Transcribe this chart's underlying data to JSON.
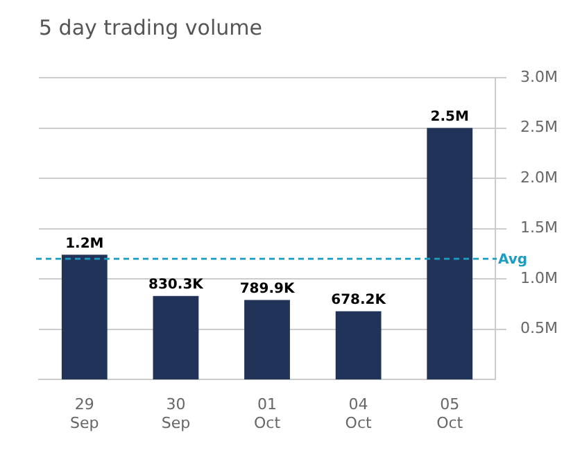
{
  "chart_data": {
    "type": "bar",
    "title": "5 day trading volume",
    "categories": [
      "29\nSep",
      "30\nSep",
      "01\nOct",
      "04\nOct",
      "05\nOct"
    ],
    "values": [
      1240000,
      830300,
      789900,
      678200,
      2500000
    ],
    "value_labels": [
      "1.2M",
      "830.3K",
      "789.9K",
      "678.2K",
      "2.5M"
    ],
    "color": "#22335a",
    "ylim": [
      0,
      3000000
    ],
    "yticks": [
      {
        "value": 500000,
        "label": "0.5M"
      },
      {
        "value": 1000000,
        "label": "1.0M"
      },
      {
        "value": 1500000,
        "label": "1.5M"
      },
      {
        "value": 2000000,
        "label": "2.0M"
      },
      {
        "value": 2500000,
        "label": "2.5M"
      },
      {
        "value": 3000000,
        "label": "3.0M"
      }
    ],
    "ref_lines": [
      {
        "axis": "y",
        "value": 1200000,
        "label": "Avg",
        "color": "#1a9dc0",
        "line_style": "dashed"
      }
    ],
    "grid": "y"
  }
}
